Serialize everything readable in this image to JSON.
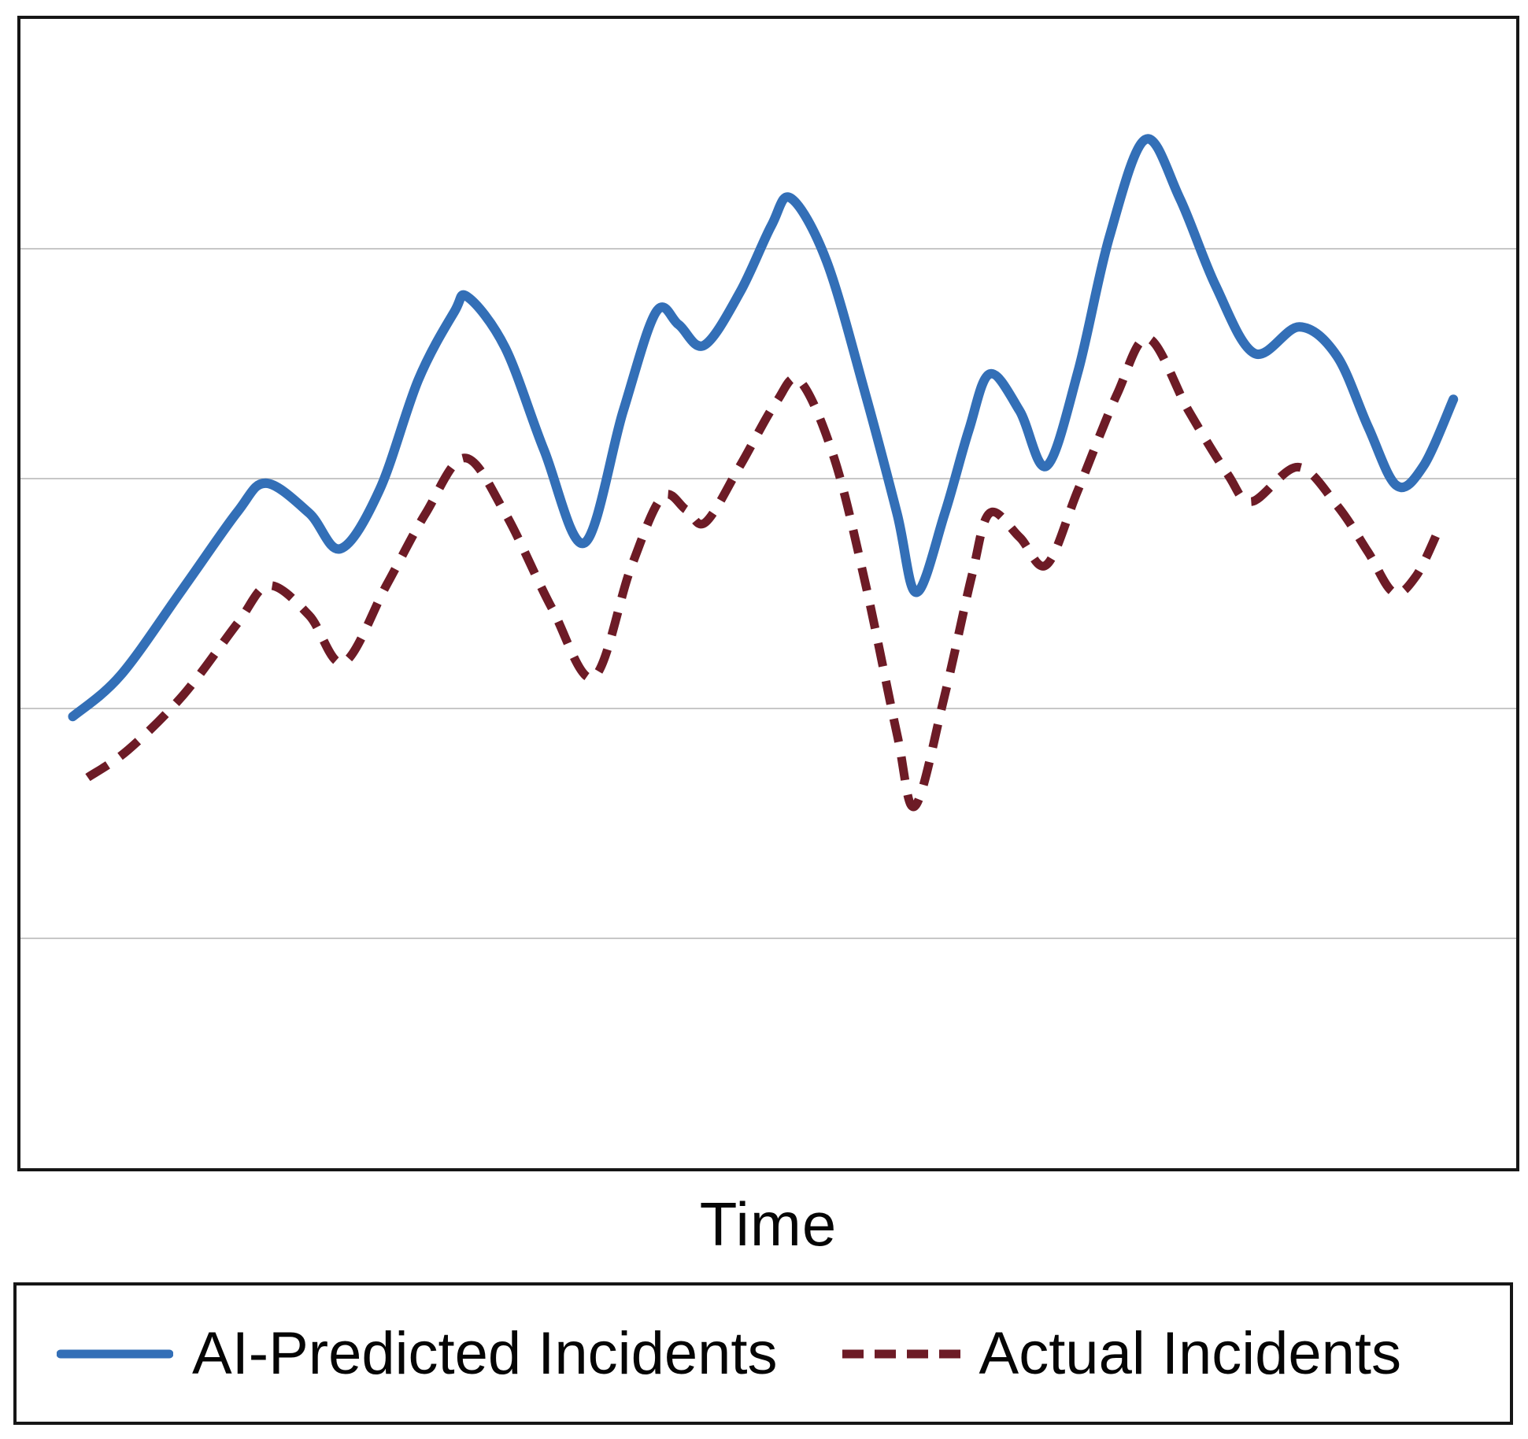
{
  "axes": {
    "frame_color": "#161616",
    "gridline_color": "#c7c7c7",
    "plot_background": "#ffffff"
  },
  "chart_data": {
    "type": "line",
    "title": "",
    "xlabel": "Time",
    "ylabel": "",
    "xlim": [
      0,
      100
    ],
    "ylim": [
      0,
      100
    ],
    "grid": "horizontal",
    "gridlines_y": [
      20,
      40,
      60,
      80
    ],
    "x_tick_labels": "none",
    "y_tick_labels": "none",
    "legend_position": "bottom-framed-box",
    "series": [
      {
        "name": "AI-Predicted Incidents",
        "color": "#336fb7",
        "line_style": "solid",
        "line_width": 12,
        "points": [
          [
            3.5,
            39.3
          ],
          [
            6.7,
            42.9
          ],
          [
            10.9,
            50.5
          ],
          [
            14.5,
            57.1
          ],
          [
            16.4,
            59.6
          ],
          [
            19.3,
            57.0
          ],
          [
            21.4,
            53.9
          ],
          [
            24.0,
            59.0
          ],
          [
            26.6,
            68.6
          ],
          [
            29.0,
            74.5
          ],
          [
            29.9,
            75.8
          ],
          [
            32.4,
            71.4
          ],
          [
            35.0,
            62.5
          ],
          [
            37.7,
            54.4
          ],
          [
            40.3,
            65.9
          ],
          [
            42.5,
            74.5
          ],
          [
            44.0,
            73.4
          ],
          [
            45.7,
            71.6
          ],
          [
            48.1,
            76.2
          ],
          [
            50.2,
            82.0
          ],
          [
            51.5,
            84.4
          ],
          [
            53.9,
            78.9
          ],
          [
            56.5,
            67.3
          ],
          [
            58.6,
            57.0
          ],
          [
            59.9,
            50.1
          ],
          [
            61.8,
            57.0
          ],
          [
            63.4,
            64.2
          ],
          [
            64.8,
            69.1
          ],
          [
            66.8,
            65.9
          ],
          [
            68.6,
            61.1
          ],
          [
            70.7,
            69.3
          ],
          [
            72.8,
            81.0
          ],
          [
            75.2,
            89.5
          ],
          [
            77.5,
            84.4
          ],
          [
            79.9,
            76.8
          ],
          [
            82.5,
            70.9
          ],
          [
            85.5,
            73.2
          ],
          [
            88.0,
            70.7
          ],
          [
            90.1,
            64.5
          ],
          [
            92.0,
            59.4
          ],
          [
            93.8,
            61.1
          ],
          [
            95.8,
            66.9
          ]
        ]
      },
      {
        "name": "Actual Incidents",
        "color": "#6d1b26",
        "line_style": "dashed",
        "line_width": 11,
        "points": [
          [
            4.5,
            34.0
          ],
          [
            7.2,
            36.4
          ],
          [
            10.9,
            41.2
          ],
          [
            14.5,
            47.4
          ],
          [
            16.6,
            50.7
          ],
          [
            19.3,
            48.1
          ],
          [
            21.6,
            44.0
          ],
          [
            24.5,
            50.8
          ],
          [
            27.1,
            57.0
          ],
          [
            29.7,
            61.8
          ],
          [
            32.4,
            57.0
          ],
          [
            35.5,
            48.8
          ],
          [
            38.3,
            42.7
          ],
          [
            40.8,
            52.2
          ],
          [
            42.9,
            58.4
          ],
          [
            44.5,
            57.3
          ],
          [
            45.8,
            56.2
          ],
          [
            48.1,
            61.1
          ],
          [
            50.5,
            66.6
          ],
          [
            52.1,
            68.5
          ],
          [
            54.4,
            61.8
          ],
          [
            56.5,
            50.8
          ],
          [
            58.6,
            37.8
          ],
          [
            59.8,
            31.5
          ],
          [
            61.8,
            41.2
          ],
          [
            63.6,
            51.5
          ],
          [
            64.8,
            57.0
          ],
          [
            66.8,
            54.9
          ],
          [
            68.6,
            52.5
          ],
          [
            70.7,
            59.0
          ],
          [
            73.3,
            67.3
          ],
          [
            75.4,
            72.2
          ],
          [
            78.1,
            65.9
          ],
          [
            80.7,
            60.4
          ],
          [
            82.3,
            58.0
          ],
          [
            85.4,
            61.0
          ],
          [
            88.0,
            57.7
          ],
          [
            90.1,
            53.6
          ],
          [
            91.8,
            50.1
          ],
          [
            93.3,
            51.5
          ],
          [
            94.8,
            55.5
          ]
        ]
      }
    ]
  }
}
